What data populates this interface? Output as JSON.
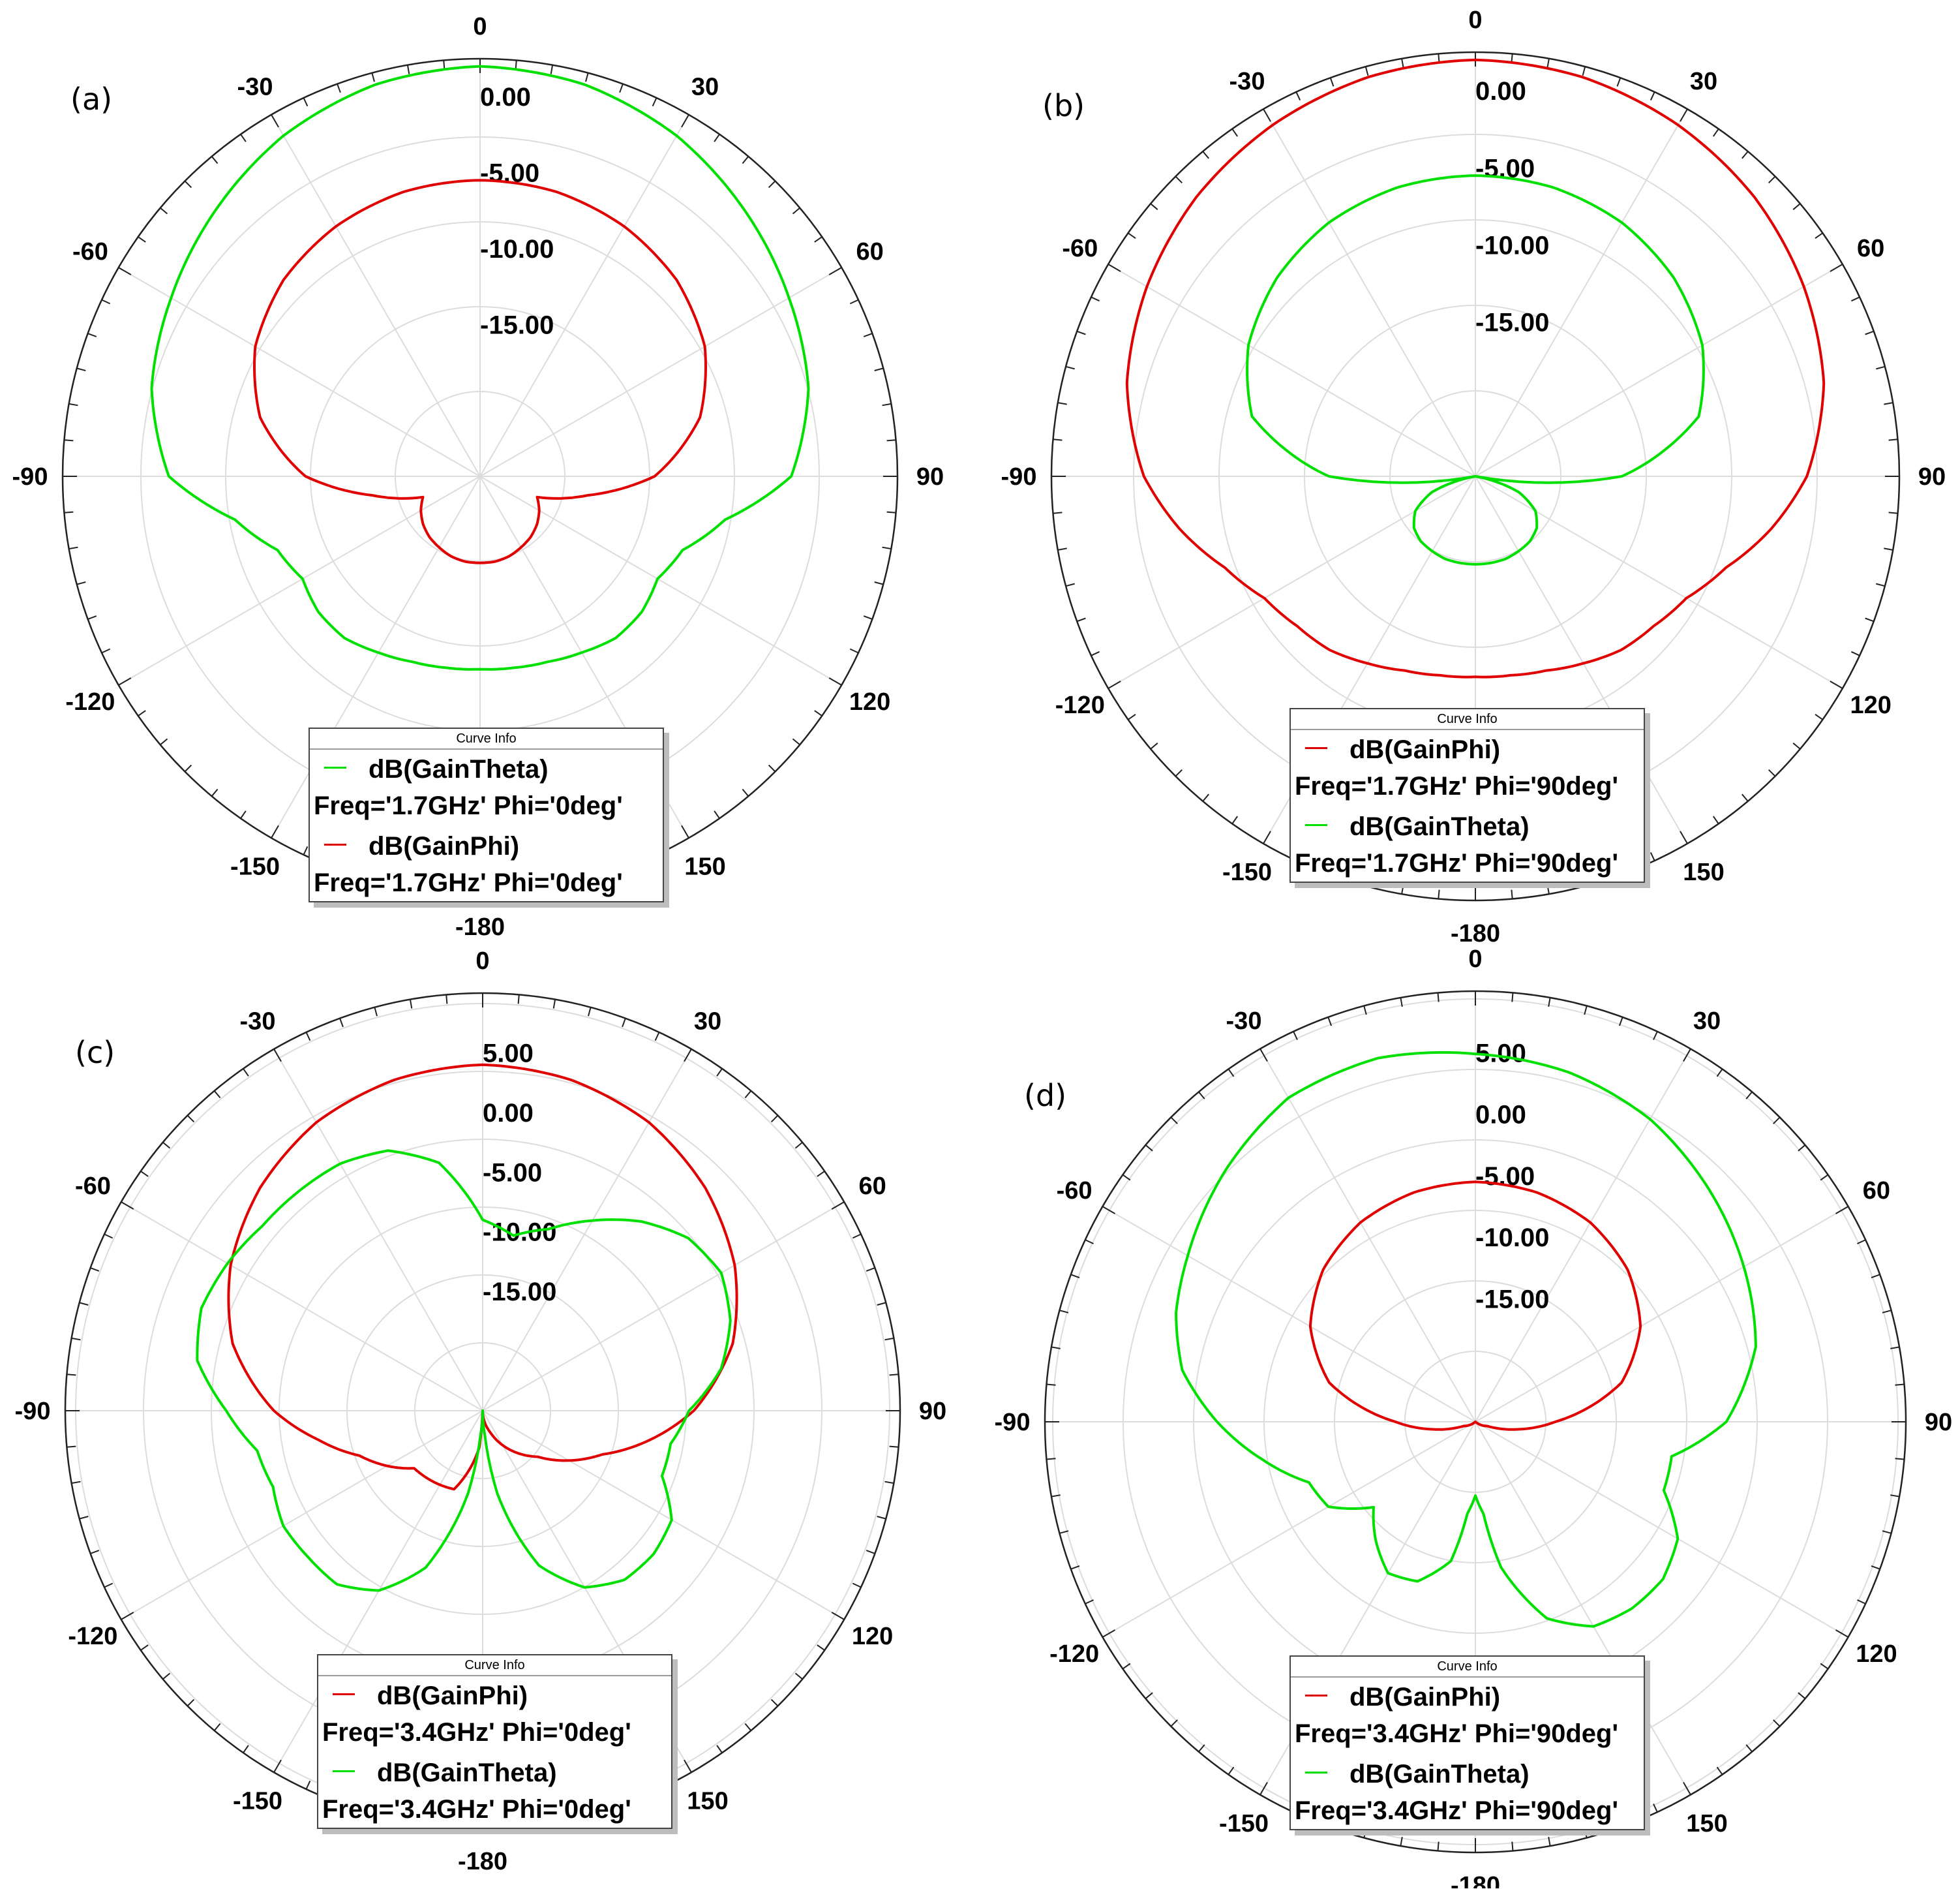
{
  "chart_data": [
    {
      "type": "polar",
      "panel_label": "(a)",
      "angle_labels": [
        "0",
        "30",
        "60",
        "90",
        "120",
        "150",
        "-180",
        "-150",
        "-120",
        "-90",
        "-60",
        "-30"
      ],
      "radial_labels": [
        "0.00",
        "-5.00",
        "-10.00",
        "-15.00"
      ],
      "radial_ticks": [
        0,
        -5,
        -10,
        -15
      ],
      "rlim": [
        -25,
        2.5
      ],
      "legend_title": "Curve Info",
      "legend_position": "bottom-center",
      "series": [
        {
          "name": "dB(GainTheta)",
          "sub": "Freq='1.7GHz' Phi='0deg'",
          "color": "#00e000",
          "theta": [
            0,
            15,
            30,
            45,
            60,
            75,
            90,
            100,
            110,
            120,
            130,
            140,
            150,
            160,
            170,
            180
          ],
          "db": [
            2.0,
            1.7,
            0.9,
            -0.3,
            -1.5,
            -2.6,
            -4.5,
            -8.6,
            -10.8,
            -11.5,
            -11.1,
            -11.1,
            -11.6,
            -12.0,
            -12.2,
            -12.3
          ]
        },
        {
          "name": "dB(GainPhi)",
          "sub": "Freq='1.7GHz' Phi='0deg'",
          "color": "#e00000",
          "theta": [
            0,
            15,
            30,
            45,
            60,
            75,
            90,
            100,
            110,
            120,
            130,
            140,
            150,
            160,
            170,
            180
          ],
          "db": [
            -5.5,
            -5.6,
            -6.0,
            -6.7,
            -7.9,
            -10.0,
            -13.5,
            -17.8,
            -21.0,
            -20.5,
            -20.1,
            -19.8,
            -19.6,
            -19.4,
            -19.3,
            -19.3
          ]
        }
      ]
    },
    {
      "type": "polar",
      "panel_label": "(b)",
      "angle_labels": [
        "0",
        "30",
        "60",
        "90",
        "120",
        "150",
        "-180",
        "-150",
        "-120",
        "-90",
        "-60",
        "-30"
      ],
      "radial_labels": [
        "0.00",
        "-5.00",
        "-10.00",
        "-15.00"
      ],
      "radial_ticks": [
        0,
        -5,
        -10,
        -15
      ],
      "rlim": [
        -25,
        2.5
      ],
      "legend_title": "Curve Info",
      "legend_position": "bottom-center",
      "series": [
        {
          "name": "dB(GainPhi)",
          "sub": "Freq='1.7GHz' Phi='90deg'",
          "color": "#e00000",
          "theta": [
            0,
            15,
            30,
            45,
            60,
            75,
            90,
            100,
            110,
            120,
            130,
            140,
            150,
            160,
            170,
            180
          ],
          "db": [
            2.0,
            1.8,
            1.3,
            0.6,
            -0.4,
            -1.6,
            -3.5,
            -5.5,
            -7.7,
            -9.2,
            -9.9,
            -10.3,
            -11.0,
            -11.6,
            -11.9,
            -12.0
          ]
        },
        {
          "name": "dB(GainTheta)",
          "sub": "Freq='1.7GHz' Phi='90deg'",
          "color": "#00e000",
          "theta": [
            0,
            15,
            30,
            45,
            60,
            75,
            90,
            100,
            110,
            120,
            130,
            140,
            150,
            160,
            170,
            180
          ],
          "db": [
            -5.5,
            -5.6,
            -6.0,
            -6.8,
            -8.0,
            -10.0,
            -15.5,
            -25,
            -22.0,
            -20.5,
            -19.8,
            -19.5,
            -19.4,
            -19.3,
            -19.3,
            -19.3
          ]
        }
      ]
    },
    {
      "type": "polar",
      "panel_label": "(c)",
      "angle_labels": [
        "0",
        "30",
        "60",
        "90",
        "120",
        "150",
        "-180",
        "-150",
        "-120",
        "-90",
        "-60",
        "-30"
      ],
      "radial_labels": [
        "5.00",
        "0.00",
        "-5.00",
        "-10.00",
        "-15.00"
      ],
      "radial_ticks": [
        5,
        0,
        -5,
        -10,
        -15
      ],
      "rlim": [
        -25,
        10
      ],
      "legend_title": "Curve Info",
      "legend_position": "bottom-center",
      "series": [
        {
          "name": "dB(GainPhi)",
          "sub": "Freq='3.4GHz' Phi='0deg'",
          "color": "#e00000",
          "thetaFull": [
            0,
            15,
            30,
            45,
            60,
            75,
            90,
            100,
            110,
            130,
            160,
            175,
            178,
            180,
            182,
            185,
            200,
            230,
            250,
            260,
            270,
            285,
            300,
            315,
            330,
            345
          ],
          "db": [
            4.0,
            3.7,
            2.9,
            1.4,
            -0.6,
            -3.3,
            -7.3,
            -10.8,
            -14.3,
            -19.0,
            -23.0,
            -24.5,
            -25,
            -25,
            -25,
            -22.0,
            -18.0,
            -17.5,
            -14.0,
            -11.0,
            -7.5,
            -3.3,
            -0.6,
            1.4,
            2.9,
            3.7
          ]
        },
        {
          "name": "dB(GainTheta)",
          "sub": "Freq='3.4GHz' Phi='0deg'",
          "color": "#00e000",
          "thetaFull": [
            0,
            10,
            20,
            30,
            40,
            50,
            60,
            70,
            80,
            90,
            100,
            110,
            120,
            130,
            140,
            150,
            160,
            170,
            175,
            180,
            185,
            190,
            200,
            210,
            220,
            230,
            240,
            250,
            260,
            270,
            280,
            290,
            300,
            310,
            320,
            330,
            340,
            350
          ],
          "db": [
            -9.0,
            -10.1,
            -8.8,
            -6.6,
            -4.3,
            -2.5,
            -1.9,
            -2.9,
            -4.7,
            -7.7,
            -9.0,
            -9.0,
            -6.7,
            -6.3,
            -6.5,
            -7.9,
            -11.2,
            -18.0,
            -23.0,
            -25,
            -23.0,
            -18.0,
            -11.0,
            -7.6,
            -6.0,
            -5.9,
            -5.7,
            -6.3,
            -5.8,
            -3.5,
            -0.7,
            0.1,
            -0.3,
            -0.9,
            -1.0,
            -1.1,
            -1.8,
            -3.9
          ]
        }
      ]
    },
    {
      "type": "polar",
      "panel_label": "(d)",
      "angle_labels": [
        "0",
        "30",
        "60",
        "90",
        "120",
        "150",
        "-180",
        "-150",
        "-120",
        "-90",
        "-60",
        "-30"
      ],
      "radial_labels": [
        "5.00",
        "0.00",
        "-5.00",
        "-10.00",
        "-15.00"
      ],
      "radial_ticks": [
        5,
        0,
        -5,
        -10,
        -15
      ],
      "rlim": [
        -25,
        10
      ],
      "legend_title": "Curve Info",
      "legend_position": "bottom-center",
      "series": [
        {
          "name": "dB(GainPhi)",
          "sub": "Freq='3.4GHz' Phi='90deg'",
          "color": "#e00000",
          "theta": [
            0,
            15,
            30,
            45,
            60,
            75,
            90,
            100,
            110,
            130,
            160,
            180
          ],
          "db": [
            -5.5,
            -5.7,
            -6.3,
            -7.5,
            -9.5,
            -12.7,
            -18.5,
            -21.5,
            -24.0,
            -25,
            -25,
            -25
          ]
        },
        {
          "name": "dB(GainTheta)",
          "sub": "Freq='3.4GHz' Phi='90deg'",
          "color": "#00e000",
          "thetaFull": [
            0,
            15,
            30,
            45,
            60,
            75,
            90,
            100,
            110,
            120,
            130,
            140,
            150,
            160,
            170,
            175,
            180,
            185,
            190,
            200,
            210,
            220,
            230,
            240,
            250,
            260,
            270,
            280,
            290,
            300,
            315,
            330,
            345
          ],
          "db": [
            4.9,
            4.4,
            3.4,
            1.8,
            0.2,
            -1.4,
            -4.6,
            -8.8,
            -8.7,
            -6.0,
            -5.1,
            -5.2,
            -5.8,
            -8.0,
            -13.0,
            -17.5,
            -19.0,
            -17.5,
            -13.5,
            -11.2,
            -10.8,
            -12.4,
            -14.2,
            -11.2,
            -10.6,
            -7.4,
            -4.0,
            -0.8,
            0.9,
            2.0,
            3.8,
            5.4,
            5.6
          ]
        }
      ]
    }
  ]
}
